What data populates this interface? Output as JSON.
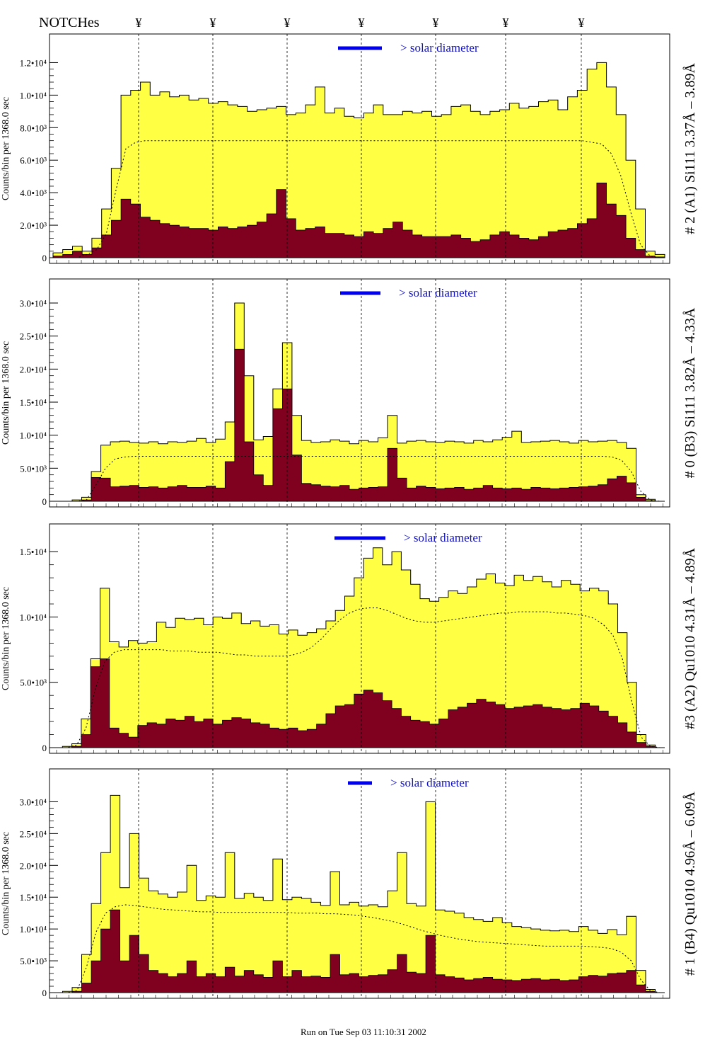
{
  "header": {
    "notch_label": "NOTCHes",
    "notch_symbol": "¥"
  },
  "footer": {
    "run_label": "Run on Tue Sep 03 11:10:31 2002"
  },
  "colors": {
    "fill_total": "#ffff44",
    "fill_lower": "#800020",
    "outline": "#000000",
    "annotation": "#1010c0"
  },
  "chart_data": [
    {
      "type": "area",
      "side_label": "# 2 (A1) Si111  3.37Å – 3.89Å",
      "ylabel": "Counts/bin per   1368.0 sec",
      "annotation": "> solar diameter",
      "ylim": [
        0,
        13500
      ],
      "ytick_labels": [
        "0",
        "2.0•10³",
        "4.0•10³",
        "6.0•10³",
        "8.0•10³",
        "1.0•10⁴",
        "1.2•10⁴"
      ],
      "ytick_values": [
        0,
        2000,
        4000,
        6000,
        8000,
        10000,
        12000
      ],
      "series": [
        {
          "values": [
            300,
            500,
            700,
            400,
            1200,
            3000,
            5500,
            10000,
            10300,
            10800,
            10000,
            10200,
            9900,
            10000,
            9700,
            9800,
            9500,
            9600,
            9400,
            9300,
            9000,
            9100,
            9200,
            9300,
            8800,
            8900,
            9400,
            10500,
            8900,
            9200,
            8700,
            8600,
            8900,
            9400,
            8800,
            8800,
            9000,
            8900,
            9000,
            8700,
            8800,
            9300,
            9400,
            9000,
            8800,
            9000,
            9100,
            9500,
            9200,
            9300,
            9600,
            9700,
            9100,
            9900,
            10300,
            11600,
            12000,
            10500,
            8800,
            6000,
            3000,
            400,
            200
          ]
        },
        {
          "values": [
            100,
            200,
            400,
            200,
            600,
            1400,
            2300,
            3600,
            3300,
            2500,
            2300,
            2100,
            2000,
            1900,
            1800,
            1800,
            1700,
            1900,
            1800,
            1900,
            2000,
            2200,
            2700,
            4200,
            2400,
            1700,
            1800,
            1900,
            1500,
            1500,
            1400,
            1300,
            1600,
            1500,
            1800,
            2200,
            1700,
            1400,
            1300,
            1300,
            1300,
            1400,
            1200,
            1000,
            1100,
            1400,
            1600,
            1400,
            1200,
            1100,
            1300,
            1600,
            1700,
            1800,
            2100,
            2400,
            4600,
            3300,
            2600,
            1200,
            500,
            100,
            50
          ]
        },
        {
          "values": [
            0,
            0,
            0,
            200,
            500,
            1500,
            4200,
            6700,
            7100,
            7200,
            7200,
            7200,
            7200,
            7200,
            7200,
            7200,
            7200,
            7200,
            7200,
            7200,
            7200,
            7200,
            7200,
            7200,
            7200,
            7200,
            7200,
            7200,
            7200,
            7200,
            7200,
            7200,
            7200,
            7200,
            7200,
            7200,
            7200,
            7200,
            7200,
            7200,
            7200,
            7200,
            7200,
            7200,
            7200,
            7200,
            7200,
            7200,
            7200,
            7200,
            7200,
            7200,
            7200,
            7200,
            7200,
            7100,
            7000,
            6400,
            5000,
            2800,
            800,
            100,
            0
          ]
        }
      ]
    },
    {
      "type": "area",
      "side_label": "# 0 (B3) Si111  3.82Å – 4.33Å",
      "ylabel": "Counts/bin per   1368.0 sec",
      "annotation": "> solar diameter",
      "ylim": [
        0,
        33000
      ],
      "ytick_labels": [
        "0",
        "5.0•10³",
        "1.0•10⁴",
        "1.5•10⁴",
        "2.0•10⁴",
        "2.5•10⁴",
        "3.0•10⁴"
      ],
      "ytick_values": [
        0,
        5000,
        10000,
        15000,
        20000,
        25000,
        30000
      ],
      "series": [
        {
          "values": [
            0,
            0,
            200,
            600,
            4500,
            8500,
            9000,
            9100,
            8900,
            8800,
            9000,
            8700,
            9000,
            8900,
            9100,
            9500,
            8900,
            9400,
            12000,
            30000,
            19000,
            9300,
            9800,
            17000,
            24000,
            13000,
            9200,
            8900,
            9000,
            9300,
            9100,
            8700,
            9200,
            9000,
            9600,
            13000,
            8800,
            9100,
            9200,
            9000,
            8900,
            9100,
            9000,
            8800,
            9200,
            9000,
            9300,
            9700,
            10600,
            8900,
            9000,
            9100,
            9200,
            9000,
            8800,
            9200,
            9000,
            9100,
            9200,
            8900,
            8000,
            1000,
            300,
            0
          ]
        },
        {
          "values": [
            0,
            0,
            0,
            200,
            3600,
            3500,
            2200,
            2300,
            2400,
            2100,
            2200,
            2000,
            2200,
            2400,
            2100,
            2100,
            2300,
            2000,
            6000,
            23000,
            9000,
            4000,
            2400,
            14000,
            17000,
            7000,
            2700,
            2500,
            2300,
            2200,
            2400,
            1800,
            2000,
            2100,
            2200,
            8000,
            3500,
            2000,
            2300,
            2100,
            1900,
            2000,
            2100,
            1800,
            2000,
            2400,
            2000,
            1900,
            2000,
            1800,
            2100,
            2000,
            1900,
            2000,
            2100,
            2200,
            2300,
            2500,
            3400,
            3800,
            2800,
            600,
            100,
            0
          ]
        },
        {
          "values": [
            0,
            0,
            0,
            200,
            2500,
            5000,
            6400,
            6700,
            6800,
            6800,
            6800,
            6800,
            6800,
            6800,
            6800,
            6800,
            6800,
            6800,
            6800,
            6800,
            6800,
            6800,
            6800,
            6800,
            6800,
            6800,
            6800,
            6800,
            6800,
            6800,
            6800,
            6800,
            6800,
            6800,
            6800,
            6800,
            6800,
            6800,
            6800,
            6800,
            6800,
            6800,
            6800,
            6800,
            6800,
            6800,
            6800,
            6800,
            6800,
            6800,
            6800,
            6800,
            6800,
            6800,
            6800,
            6800,
            6800,
            6800,
            6700,
            6200,
            4500,
            1500,
            200,
            0
          ]
        }
      ]
    },
    {
      "type": "area",
      "side_label": "#3 (A2) Qu1010  4.31Å – 4.89Å",
      "ylabel": "Counts/bin per   1368.0 sec",
      "annotation": "> solar diameter",
      "ylim": [
        0,
        16800
      ],
      "ytick_labels": [
        "0",
        "5.0•10³",
        "1.0•10⁴",
        "1.5•10⁴"
      ],
      "ytick_values": [
        0,
        5000,
        10000,
        15000
      ],
      "series": [
        {
          "values": [
            0,
            100,
            300,
            2200,
            6800,
            12200,
            8100,
            7700,
            8200,
            8000,
            8100,
            9600,
            9200,
            9900,
            9800,
            9900,
            9400,
            10000,
            9900,
            10300,
            9500,
            9700,
            9300,
            9400,
            8700,
            9000,
            8600,
            8800,
            9100,
            9700,
            10500,
            11600,
            13000,
            14500,
            15300,
            14000,
            15000,
            13600,
            12500,
            11400,
            11200,
            11500,
            12000,
            11800,
            12300,
            12900,
            13300,
            12600,
            12400,
            13200,
            12800,
            13100,
            12700,
            12300,
            12800,
            12500,
            12000,
            12200,
            12000,
            11000,
            8800,
            5000,
            1000,
            200,
            0
          ]
        },
        {
          "values": [
            0,
            0,
            100,
            1000,
            6200,
            6800,
            1500,
            1100,
            800,
            1700,
            1900,
            1800,
            2200,
            2100,
            2400,
            2000,
            2200,
            1800,
            2100,
            2300,
            2200,
            1900,
            1800,
            1500,
            1400,
            1500,
            1300,
            1400,
            1800,
            2600,
            3200,
            3300,
            4100,
            4400,
            4200,
            3600,
            3000,
            2400,
            2100,
            2000,
            1800,
            2200,
            2900,
            3100,
            3400,
            3700,
            3500,
            3300,
            3000,
            3100,
            3200,
            3300,
            3100,
            3000,
            2900,
            3000,
            3400,
            3200,
            2800,
            2400,
            1900,
            1200,
            400,
            100,
            0
          ]
        },
        {
          "values": [
            0,
            0,
            200,
            1500,
            4500,
            6600,
            7300,
            7500,
            7500,
            7500,
            7500,
            7500,
            7400,
            7400,
            7400,
            7300,
            7300,
            7300,
            7200,
            7100,
            7100,
            7000,
            7000,
            7000,
            7000,
            7100,
            7300,
            7700,
            8300,
            9100,
            9800,
            10300,
            10600,
            10700,
            10700,
            10500,
            10200,
            9900,
            9700,
            9600,
            9600,
            9700,
            9800,
            9900,
            10000,
            10100,
            10200,
            10300,
            10300,
            10400,
            10400,
            10400,
            10400,
            10300,
            10300,
            10200,
            10100,
            9900,
            9400,
            8600,
            6800,
            3500,
            800,
            100,
            0
          ]
        }
      ]
    },
    {
      "type": "area",
      "side_label": "# 1 (B4) Qu1010 4.96Å – 6.09Å",
      "ylabel": "Counts/bin per   1368.0 sec",
      "annotation": "> solar diameter",
      "ylim": [
        0,
        34500
      ],
      "ytick_labels": [
        "0",
        "5.0•10³",
        "1.0•10⁴",
        "1.5•10⁴",
        "2.0•10⁴",
        "2.5•10⁴",
        "3.0•10⁴"
      ],
      "ytick_values": [
        0,
        5000,
        10000,
        15000,
        20000,
        25000,
        30000
      ],
      "series": [
        {
          "values": [
            0,
            200,
            800,
            6000,
            14000,
            22000,
            31000,
            16500,
            25000,
            18000,
            16000,
            15500,
            15000,
            15800,
            20000,
            14500,
            15200,
            15000,
            22000,
            14800,
            15600,
            15000,
            14500,
            21000,
            14600,
            15000,
            14800,
            14200,
            13700,
            19000,
            13800,
            14200,
            13600,
            13800,
            13500,
            16000,
            22000,
            14000,
            13600,
            30000,
            13000,
            12800,
            12500,
            11800,
            11500,
            11200,
            11800,
            11000,
            10400,
            10200,
            10000,
            9800,
            9700,
            9800,
            9600,
            10400,
            9800,
            9300,
            9900,
            9100,
            12000,
            3500,
            500,
            0
          ]
        },
        {
          "values": [
            0,
            0,
            200,
            1500,
            5000,
            10000,
            13000,
            5000,
            9000,
            6000,
            3500,
            3000,
            2500,
            3000,
            5000,
            2500,
            3000,
            2500,
            4000,
            2600,
            3500,
            2800,
            2400,
            5000,
            2500,
            3500,
            2500,
            2600,
            2400,
            6000,
            2800,
            3000,
            2500,
            2700,
            2800,
            3600,
            6000,
            3200,
            3000,
            9000,
            2800,
            2500,
            2300,
            2000,
            2200,
            2400,
            2100,
            2000,
            1900,
            2100,
            2200,
            2000,
            2100,
            1900,
            2000,
            2500,
            2700,
            2600,
            3000,
            3100,
            3500,
            1200,
            200,
            0
          ]
        },
        {
          "values": [
            0,
            0,
            300,
            4000,
            9500,
            12500,
            13500,
            13800,
            13700,
            13500,
            13300,
            13100,
            13000,
            12900,
            12800,
            12700,
            12700,
            12600,
            12600,
            12600,
            12600,
            12600,
            12600,
            12600,
            12600,
            12500,
            12500,
            12500,
            12400,
            12400,
            12300,
            12200,
            12000,
            11800,
            11500,
            11200,
            10800,
            10300,
            9800,
            9400,
            9000,
            8700,
            8400,
            8200,
            8000,
            7900,
            7800,
            7700,
            7600,
            7500,
            7400,
            7300,
            7300,
            7300,
            7300,
            7300,
            7200,
            7100,
            6900,
            6300,
            5000,
            2000,
            300,
            0
          ]
        }
      ]
    }
  ]
}
